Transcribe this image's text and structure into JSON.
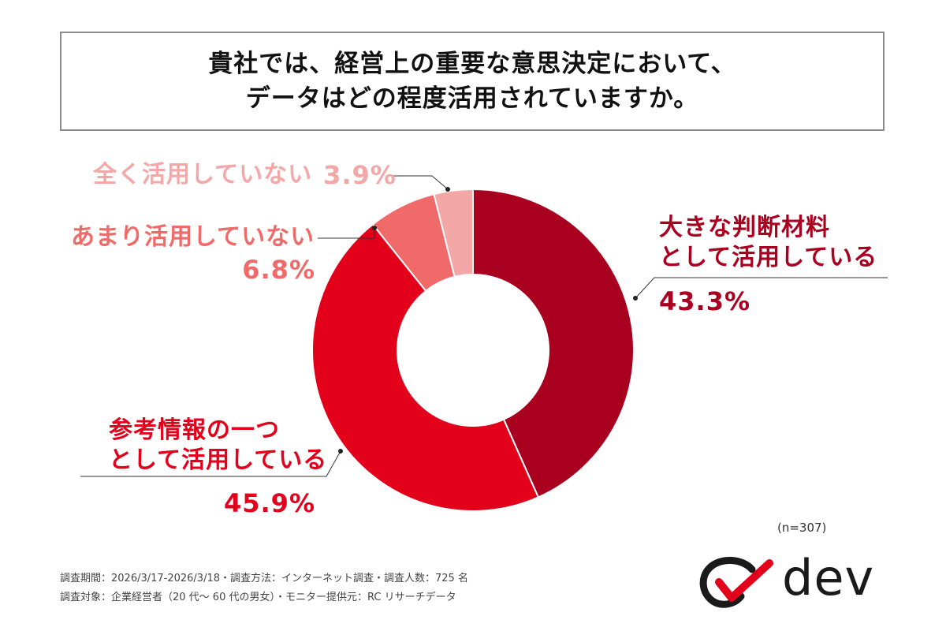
{
  "title": {
    "line1": "貴社では、経営上の重要な意思決定において、",
    "line2": "データはどの程度活用されていますか。"
  },
  "chart_data": {
    "type": "pie",
    "subtype": "donut",
    "title": "貴社では、経営上の重要な意思決定において、データはどの程度活用されていますか。",
    "start": "top, clockwise",
    "slices": [
      {
        "label_lines": [
          "大きな判断材料",
          "として活用している"
        ],
        "pct_label": "43.3%",
        "value": 43.3,
        "color": "#aa0020"
      },
      {
        "label_lines": [
          "参考情報の一つ",
          "として活用している"
        ],
        "pct_label": "45.9%",
        "value": 45.9,
        "color": "#e3001b"
      },
      {
        "label_lines": [
          "あまり活用していない"
        ],
        "pct_label": "6.8%",
        "value": 6.8,
        "color": "#f06a6a"
      },
      {
        "label_lines": [
          "全く活用していない"
        ],
        "pct_label": "3.9%",
        "value": 3.9,
        "color": "#f4a7a7"
      }
    ]
  },
  "sample_note": "(n=307)",
  "footer": {
    "line1": "調査期間：2026/3/17-2026/3/18・調査方法：インターネット調査・調査人数：725 名",
    "line2": "調査対象：企業経営者（20 代～ 60 代の男女）・モニター提供元：RC リサーチデータ"
  },
  "logo": {
    "text": "dev",
    "mark_color": "#e3001b"
  }
}
